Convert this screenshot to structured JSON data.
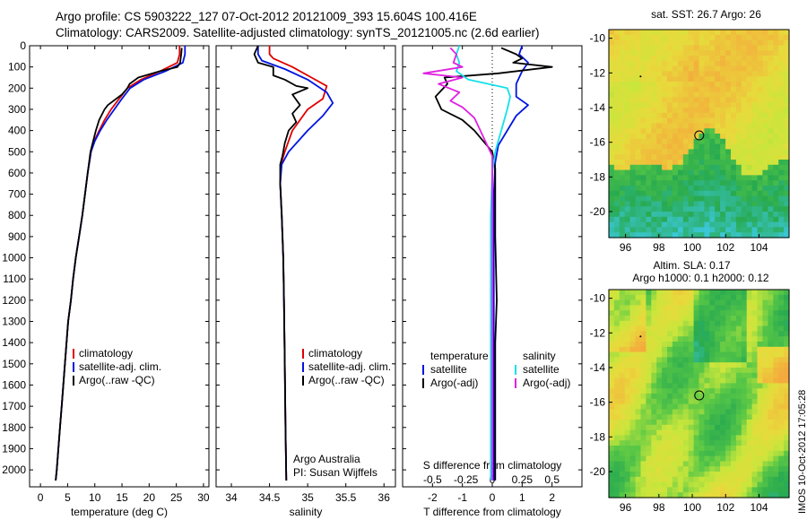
{
  "title": {
    "line1": "Argo profile: CS 5903222_127 07-Oct-2012 20121009_393 15.604S 100.416E",
    "line2": "Climatology: CARS2009. Satellite-adjusted climatology: synTS_20121005.nc (2.6d earlier)"
  },
  "colors": {
    "climatology": "#e00000",
    "satellite": "#0014e0",
    "argo": "#000000",
    "sal_satellite": "#14e0e8",
    "sal_argo": "#e020e0"
  },
  "chart_data": [
    {
      "type": "line",
      "id": "temperature",
      "xlabel": "temperature (deg C)",
      "ylabel": "",
      "xlim": [
        -2,
        31
      ],
      "ylim": [
        2080,
        0
      ],
      "xticks": [
        0,
        5,
        10,
        15,
        20,
        25,
        30
      ],
      "yticks": [
        0,
        100,
        200,
        300,
        400,
        500,
        600,
        700,
        800,
        900,
        1000,
        1100,
        1200,
        1300,
        1400,
        1500,
        1600,
        1700,
        1800,
        1900,
        2000
      ],
      "legend": {
        "position": "lower-middle",
        "entries": [
          "climatology",
          "satellite-adj. clim.",
          "Argo(..raw -QC)"
        ]
      },
      "series": [
        {
          "name": "climatology",
          "color": "climatology",
          "points": [
            [
              25.6,
              0
            ],
            [
              25.6,
              40
            ],
            [
              25.2,
              80
            ],
            [
              22,
              120
            ],
            [
              18.5,
              160
            ],
            [
              16,
              200
            ],
            [
              14.5,
              250
            ],
            [
              13,
              300
            ],
            [
              11.8,
              350
            ],
            [
              10.8,
              400
            ],
            [
              9.9,
              450
            ],
            [
              9.3,
              500
            ],
            [
              8.7,
              600
            ],
            [
              8.2,
              700
            ],
            [
              7.7,
              800
            ],
            [
              7.1,
              900
            ],
            [
              6.5,
              1000
            ],
            [
              6.0,
              1100
            ],
            [
              5.6,
              1200
            ],
            [
              5.1,
              1300
            ],
            [
              4.8,
              1400
            ],
            [
              4.5,
              1500
            ],
            [
              4.2,
              1600
            ],
            [
              3.9,
              1700
            ],
            [
              3.6,
              1800
            ],
            [
              3.3,
              1900
            ],
            [
              3.0,
              2000
            ],
            [
              2.8,
              2050
            ]
          ]
        },
        {
          "name": "satellite-adj. clim.",
          "color": "satellite",
          "points": [
            [
              26.6,
              0
            ],
            [
              26.6,
              40
            ],
            [
              26.2,
              80
            ],
            [
              23,
              120
            ],
            [
              19,
              160
            ],
            [
              16.5,
              200
            ],
            [
              15,
              250
            ],
            [
              13.6,
              300
            ],
            [
              12.2,
              350
            ],
            [
              11,
              400
            ],
            [
              10,
              450
            ],
            [
              9.3,
              500
            ],
            [
              8.7,
              600
            ],
            [
              8.2,
              700
            ],
            [
              7.7,
              800
            ],
            [
              7.1,
              900
            ],
            [
              6.5,
              1000
            ],
            [
              6.0,
              1100
            ],
            [
              5.6,
              1200
            ],
            [
              5.1,
              1300
            ],
            [
              4.8,
              1400
            ],
            [
              4.5,
              1500
            ],
            [
              4.2,
              1600
            ],
            [
              3.9,
              1700
            ],
            [
              3.6,
              1800
            ],
            [
              3.3,
              1900
            ],
            [
              3.0,
              2000
            ],
            [
              2.8,
              2050
            ]
          ]
        },
        {
          "name": "Argo(..raw -QC)",
          "color": "argo",
          "points": [
            [
              26.0,
              10
            ],
            [
              25.9,
              40
            ],
            [
              25.7,
              80
            ],
            [
              25.2,
              100
            ],
            [
              22,
              120
            ],
            [
              18,
              150
            ],
            [
              16.4,
              180
            ],
            [
              16,
              200
            ],
            [
              15,
              230
            ],
            [
              12.4,
              280
            ],
            [
              11.8,
              300
            ],
            [
              10.8,
              350
            ],
            [
              10.2,
              400
            ],
            [
              9.7,
              450
            ],
            [
              9.2,
              500
            ],
            [
              8.7,
              600
            ],
            [
              8.2,
              700
            ],
            [
              7.7,
              800
            ],
            [
              7.1,
              900
            ],
            [
              6.5,
              1000
            ],
            [
              6.0,
              1100
            ],
            [
              5.6,
              1200
            ],
            [
              5.1,
              1300
            ],
            [
              4.8,
              1400
            ],
            [
              4.5,
              1500
            ],
            [
              4.2,
              1600
            ],
            [
              3.9,
              1700
            ],
            [
              3.6,
              1800
            ],
            [
              3.3,
              1900
            ],
            [
              3.0,
              2000
            ],
            [
              2.8,
              2050
            ]
          ]
        }
      ]
    },
    {
      "type": "line",
      "id": "salinity",
      "xlabel": "salinity",
      "xlim": [
        33.8,
        36.15
      ],
      "ylim": [
        2080,
        0
      ],
      "xticks": [
        34,
        34.5,
        35,
        35.5,
        36
      ],
      "xticklabels": [
        "34",
        "34.5",
        "35",
        "35.5",
        "36"
      ],
      "legend": {
        "position": "lower-middle",
        "entries": [
          "climatology",
          "satellite-adj. clim.",
          "Argo(..raw -QC)"
        ]
      },
      "annotation": [
        "Argo Australia",
        "PI: Susan Wijffels"
      ],
      "series": [
        {
          "name": "climatology",
          "color": "climatology",
          "points": [
            [
              34.5,
              0
            ],
            [
              34.5,
              40
            ],
            [
              34.55,
              60
            ],
            [
              34.8,
              100
            ],
            [
              35.05,
              150
            ],
            [
              35.25,
              190
            ],
            [
              35.2,
              250
            ],
            [
              35.0,
              300
            ],
            [
              34.8,
              400
            ],
            [
              34.7,
              500
            ],
            [
              34.65,
              560
            ],
            [
              34.64,
              650
            ],
            [
              34.66,
              800
            ],
            [
              34.68,
              1000
            ],
            [
              34.69,
              1200
            ],
            [
              34.7,
              1500
            ],
            [
              34.71,
              1800
            ],
            [
              34.72,
              2050
            ]
          ]
        },
        {
          "name": "satellite-adj. clim.",
          "color": "satellite",
          "points": [
            [
              34.35,
              0
            ],
            [
              34.35,
              40
            ],
            [
              34.4,
              70
            ],
            [
              34.7,
              110
            ],
            [
              35.0,
              160
            ],
            [
              35.25,
              220
            ],
            [
              35.33,
              270
            ],
            [
              35.2,
              330
            ],
            [
              35.0,
              400
            ],
            [
              34.75,
              500
            ],
            [
              34.66,
              560
            ],
            [
              34.64,
              650
            ],
            [
              34.66,
              800
            ],
            [
              34.68,
              1000
            ],
            [
              34.69,
              1200
            ],
            [
              34.7,
              1500
            ],
            [
              34.71,
              1800
            ],
            [
              34.72,
              2050
            ]
          ]
        },
        {
          "name": "Argo(..raw -QC)",
          "color": "argo",
          "points": [
            [
              34.35,
              0
            ],
            [
              34.3,
              40
            ],
            [
              34.35,
              80
            ],
            [
              34.55,
              100
            ],
            [
              34.55,
              140
            ],
            [
              34.7,
              160
            ],
            [
              34.85,
              190
            ],
            [
              35.0,
              200
            ],
            [
              34.8,
              230
            ],
            [
              34.9,
              280
            ],
            [
              34.8,
              320
            ],
            [
              34.85,
              360
            ],
            [
              34.75,
              400
            ],
            [
              34.7,
              460
            ],
            [
              34.67,
              520
            ],
            [
              34.64,
              560
            ],
            [
              34.64,
              650
            ],
            [
              34.66,
              800
            ],
            [
              34.68,
              1000
            ],
            [
              34.69,
              1200
            ],
            [
              34.7,
              1500
            ],
            [
              34.71,
              1800
            ],
            [
              34.72,
              2050
            ]
          ]
        }
      ]
    },
    {
      "type": "line",
      "id": "difference",
      "xlabel": "T difference from climatology",
      "xlabel_top": "S difference from climatology",
      "xlim": [
        -3,
        3
      ],
      "ylim": [
        2080,
        0
      ],
      "xticks": [
        -2,
        -1,
        0,
        1,
        2
      ],
      "top_ticklabels": [
        "-0.5",
        "-0.25",
        "0",
        "0.25",
        "0.5"
      ],
      "legend": {
        "position": "lower",
        "groups": [
          "temperature",
          "salinity"
        ],
        "entries": [
          "satellite",
          "Argo(-adj)",
          "satellite",
          "Argo(-adj)"
        ]
      },
      "series": [
        {
          "name": "temperature satellite",
          "color": "satellite",
          "points": [
            [
              1.0,
              0
            ],
            [
              0.9,
              40
            ],
            [
              1.2,
              80
            ],
            [
              1.0,
              120
            ],
            [
              0.8,
              180
            ],
            [
              0.8,
              240
            ],
            [
              1.2,
              280
            ],
            [
              0.8,
              330
            ],
            [
              0.5,
              400
            ],
            [
              0.2,
              470
            ],
            [
              0.1,
              550
            ],
            [
              0.05,
              700
            ],
            [
              0.05,
              900
            ],
            [
              0.05,
              1200
            ],
            [
              0.05,
              1500
            ],
            [
              0.05,
              2050
            ]
          ]
        },
        {
          "name": "temperature Argo(-adj)",
          "color": "argo",
          "points": [
            [
              0.3,
              10
            ],
            [
              0.8,
              40
            ],
            [
              1.0,
              60
            ],
            [
              0.7,
              80
            ],
            [
              2.0,
              100
            ],
            [
              0.2,
              130
            ],
            [
              -1.6,
              150
            ],
            [
              -1.5,
              180
            ],
            [
              -1.9,
              240
            ],
            [
              -1.7,
              300
            ],
            [
              -1.0,
              350
            ],
            [
              -0.6,
              400
            ],
            [
              -0.3,
              450
            ],
            [
              0.0,
              500
            ],
            [
              0.1,
              580
            ],
            [
              0.1,
              700
            ],
            [
              0.1,
              900
            ],
            [
              0.15,
              1200
            ],
            [
              0.1,
              1400
            ],
            [
              0.1,
              2050
            ]
          ]
        },
        {
          "name": "salinity satellite",
          "color": "sal_satellite",
          "points": [
            [
              -1.1,
              0
            ],
            [
              -1.2,
              40
            ],
            [
              -1.1,
              80
            ],
            [
              -1.2,
              120
            ],
            [
              -0.8,
              160
            ],
            [
              0.5,
              200
            ],
            [
              0.6,
              240
            ],
            [
              0.5,
              300
            ],
            [
              0.3,
              400
            ],
            [
              0.1,
              500
            ],
            [
              0.0,
              600
            ],
            [
              -0.05,
              800
            ],
            [
              -0.05,
              1000
            ],
            [
              -0.05,
              1500
            ],
            [
              -0.05,
              2050
            ]
          ]
        },
        {
          "name": "salinity Argo(-adj)",
          "color": "sal_argo",
          "points": [
            [
              -1.4,
              10
            ],
            [
              -1.2,
              40
            ],
            [
              -1.3,
              80
            ],
            [
              -1.0,
              100
            ],
            [
              -2.3,
              130
            ],
            [
              -1.0,
              150
            ],
            [
              -1.8,
              180
            ],
            [
              -1.1,
              220
            ],
            [
              -1.4,
              260
            ],
            [
              -1.0,
              290
            ],
            [
              -0.6,
              340
            ],
            [
              -0.4,
              400
            ],
            [
              -0.2,
              460
            ],
            [
              0.0,
              520
            ],
            [
              0.0,
              600
            ],
            [
              0.0,
              800
            ],
            [
              0.0,
              1000
            ],
            [
              0.0,
              1500
            ],
            [
              0.0,
              2050
            ]
          ]
        }
      ]
    }
  ],
  "maps": [
    {
      "id": "sst",
      "title": "sat. SST: 26.7 Argo: 26",
      "xticks": [
        "96",
        "98",
        "100",
        "102",
        "104"
      ],
      "yticks": [
        "-10",
        "-12",
        "-14",
        "-16",
        "-18",
        "-20"
      ],
      "lon": [
        95,
        105.8
      ],
      "lat": [
        -21.5,
        -9.5
      ],
      "marker": [
        100.416,
        -15.604
      ]
    },
    {
      "id": "sla",
      "title_line1": "Altim. SLA: 0.17",
      "title_line2": "Argo h1000: 0.1 h2000: 0.12",
      "xticks": [
        "96",
        "98",
        "100",
        "102",
        "104"
      ],
      "yticks": [
        "-10",
        "-12",
        "-14",
        "-16",
        "-18",
        "-20"
      ],
      "lon": [
        95,
        105.8
      ],
      "lat": [
        -21.5,
        -9.5
      ],
      "marker": [
        100.416,
        -15.604
      ]
    }
  ],
  "stamp": "IMOS 10-Oct-2012 17:05:28"
}
